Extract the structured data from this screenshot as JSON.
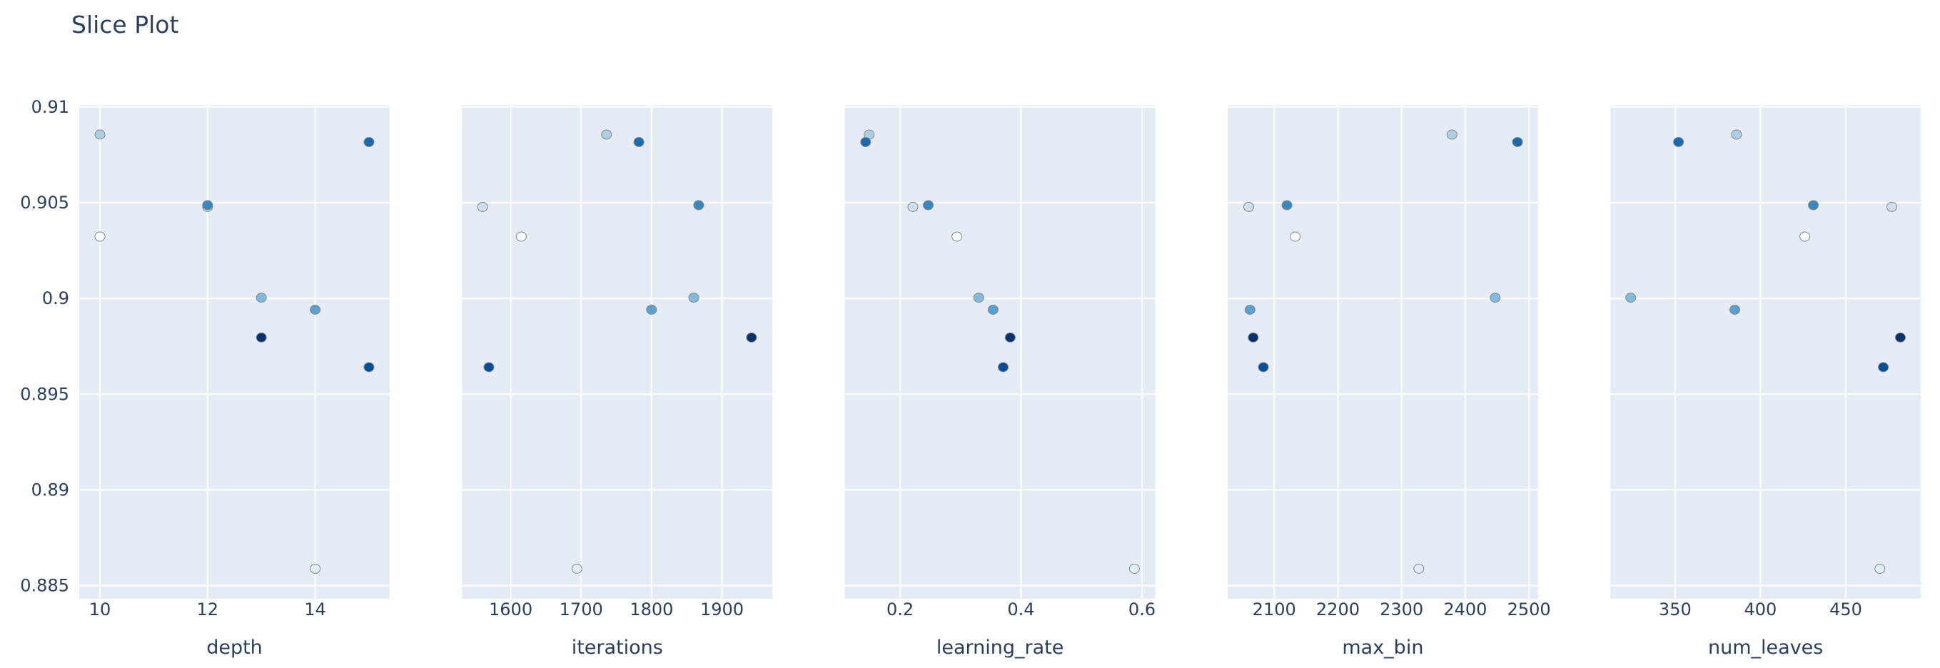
{
  "chart_data": {
    "type": "scatter",
    "title": "Slice Plot",
    "ylabel": "",
    "ylim": [
      0.88431,
      0.91009
    ],
    "y_ticks": [
      "0.885",
      "0.89",
      "0.895",
      "0.9",
      "0.905",
      "0.91"
    ],
    "y_tick_values": [
      0.885,
      0.89,
      0.895,
      0.9,
      0.905,
      0.91
    ],
    "grid": true,
    "legend": "none",
    "colorscale": "Blues",
    "colorscale_stops": [
      "#f7fbff",
      "#deebf7",
      "#c6dbef",
      "#9ecae1",
      "#6baed6",
      "#4292c6",
      "#2171b5",
      "#08519c",
      "#08306b"
    ],
    "plot_background": "#e5ecf6",
    "marker_outline": "#888888",
    "trials": [
      0,
      1,
      2,
      3,
      4,
      5,
      6,
      7,
      8,
      9
    ],
    "objective_values": [
      0.90323,
      0.88588,
      0.90478,
      0.90856,
      0.90004,
      0.89941,
      0.90487,
      0.90817,
      0.89641,
      0.89796
    ],
    "params": [
      {
        "name": "depth",
        "xlim": [
          9.615,
          15.385
        ],
        "x_ticks": [
          "10",
          "12",
          "14"
        ],
        "x_tick_values": [
          10,
          12,
          14
        ],
        "values": [
          10,
          14,
          12,
          10,
          13,
          14,
          12,
          15,
          15,
          13
        ]
      },
      {
        "name": "iterations",
        "xlim": [
          1530.8,
          1971.8
        ],
        "x_ticks": [
          "1600",
          "1700",
          "1800",
          "1900"
        ],
        "x_tick_values": [
          1600,
          1700,
          1800,
          1900
        ],
        "values": [
          1615,
          1694,
          1560,
          1736,
          1860,
          1800,
          1867,
          1782,
          1569,
          1942
        ]
      },
      {
        "name": "learning_rate",
        "xlim": [
          0.1086,
          0.622
        ],
        "x_ticks": [
          "0.2",
          "0.4",
          "0.6"
        ],
        "x_tick_values": [
          0.2,
          0.4,
          0.6
        ],
        "values": [
          0.294,
          0.5875,
          0.2212,
          0.1489,
          0.3301,
          0.3538,
          0.2466,
          0.143,
          0.3705,
          0.3821
        ]
      },
      {
        "name": "max_bin",
        "xlim": [
          2026.8,
          2514.3
        ],
        "x_ticks": [
          "2100",
          "2200",
          "2300",
          "2400",
          "2500"
        ],
        "x_tick_values": [
          2100,
          2200,
          2300,
          2400,
          2500
        ],
        "values": [
          2133,
          2327,
          2060,
          2379,
          2447,
          2062,
          2120,
          2482,
          2083,
          2067
        ]
      },
      {
        "name": "num_leaves",
        "xlim": [
          312.1,
          494.0
        ],
        "x_ticks": [
          "350",
          "400",
          "450"
        ],
        "x_tick_values": [
          350,
          400,
          450
        ],
        "values": [
          426,
          470,
          477,
          386,
          324,
          385,
          431,
          352,
          472,
          482
        ]
      }
    ]
  }
}
